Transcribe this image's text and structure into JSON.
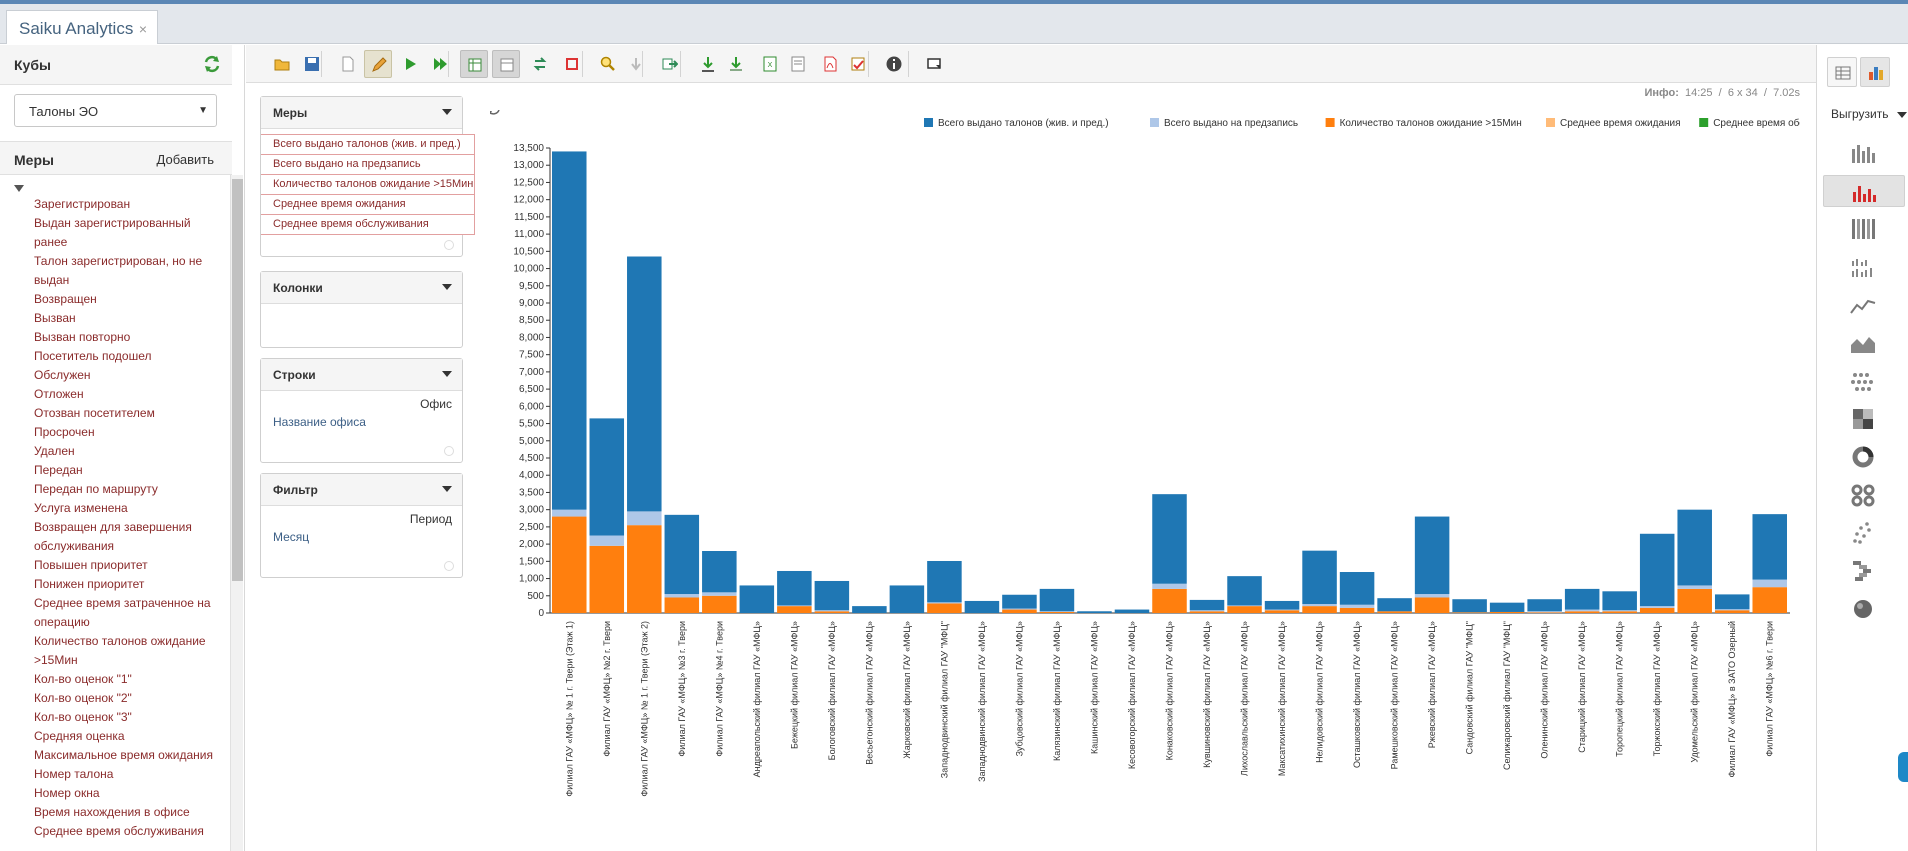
{
  "app": {
    "tab_title": "Saiku Analytics",
    "tab_close": "×"
  },
  "left": {
    "cubes_title": "Кубы",
    "cube_selected": "Талоны ЭО",
    "measures_title": "Меры",
    "add_label": "Добавить",
    "measures": [
      "Зарегистрирован",
      "Выдан зарегистрированный ранее",
      "Талон зарегистрирован, но не выдан",
      "Возвращен",
      "Вызван",
      "Вызван повторно",
      "Посетитель подошел",
      "Обслужен",
      "Отложен",
      "Отозван посетителем",
      "Просрочен",
      "Удален",
      "Передан",
      "Передан по маршруту",
      "Услуга изменена",
      "Возвращен для завершения обслуживания",
      "Повышен приоритет",
      "Понижен приоритет",
      "Среднее время затраченное на операцию",
      "Количество талонов ожидание >15Мин",
      "Кол-во оценок \"1\"",
      "Кол-во оценок \"2\"",
      "Кол-во оценок \"3\"",
      "Средняя оценка",
      "Максимальное время ожидания",
      "Номер талона",
      "Номер окна",
      "Время нахождения в офисе",
      "Среднее время обслуживания"
    ]
  },
  "info": {
    "label": "Инфо:",
    "time": "14:25",
    "size": "6 x 34",
    "duration": "7.02s"
  },
  "panels": {
    "measures": {
      "title": "Меры",
      "items": [
        "Всего выдано талонов (жив. и пред.)",
        "Всего выдано на предзапись",
        "Количество талонов ожидание >15Мин",
        "Среднее время ожидания",
        "Среднее время обслуживания"
      ]
    },
    "columns": {
      "title": "Колонки"
    },
    "rows": {
      "title": "Строки",
      "hierarchy": "Офис",
      "level": "Название офиса"
    },
    "filter": {
      "title": "Фильтр",
      "hierarchy": "Период",
      "level": "Месяц"
    }
  },
  "right": {
    "export_label": "Выгрузить"
  },
  "icons": {
    "toolbar": [
      "open-icon",
      "save-icon",
      "new-query-icon",
      "edit-icon",
      "run-icon",
      "run-auto-icon",
      "pivot-icon",
      "non-empty-icon",
      "swap-axes-icon",
      "hide-parents-icon",
      "zoom-icon",
      "drill-down-icon",
      "drill-across-icon",
      "export-xls-icon",
      "export-csv-icon",
      "export-pdf-icon",
      "export-txt-icon",
      "mdx-icon",
      "query-info-icon",
      "fullscreen-icon"
    ],
    "chart_types": [
      "bar-chart-icon",
      "stacked-bar-chart-icon",
      "stacked-100-icon",
      "multi-bar-icon",
      "line-chart-icon",
      "area-chart-icon",
      "dot-chart-icon",
      "heatmap-icon",
      "donut-chart-icon",
      "multi-donut-icon",
      "scatter-icon",
      "waterfall-icon",
      "sphere-icon"
    ]
  },
  "colors": {
    "series1": "#1f77b4",
    "series2": "#aec7e8",
    "series3": "#ff7f0e",
    "series4": "#ffbb78",
    "series5": "#2ca02c",
    "measure_text": "#8a2b2b"
  },
  "chart_data": {
    "type": "bar",
    "stacked": true,
    "legend_position": "top-right",
    "ylim": [
      0,
      13500
    ],
    "yticks": [
      0,
      500,
      1000,
      1500,
      2000,
      2500,
      3000,
      3500,
      4000,
      4500,
      5000,
      5500,
      6000,
      6500,
      7000,
      7500,
      8000,
      8500,
      9000,
      9500,
      10000,
      10500,
      11000,
      11500,
      12000,
      12500,
      13000,
      13500
    ],
    "categories": [
      "Филиал ГАУ «МФЦ» № 1 г. Твери (Этаж 1)",
      "Филиал ГАУ «МФЦ» №2 г. Твери",
      "Филиал ГАУ «МФЦ» № 1 г. Твери (Этаж 2)",
      "Филиал ГАУ «МФЦ» №3 г. Твери",
      "Филиал ГАУ «МФЦ» №4 г. Твери",
      "Андреапольский филиал ГАУ «МФЦ»",
      "Бежецкий филиал ГАУ «МФЦ»",
      "Бологовский филиал ГАУ «МФЦ»",
      "Весьегонский филиал ГАУ «МФЦ»",
      "Жарковский филиал ГАУ «МФЦ»",
      "Западнодвинский филиал ГАУ \"МФЦ\"",
      "Западнодвинский филиал ГАУ «МФЦ»",
      "Зубцовский филиал ГАУ «МФЦ»",
      "Калязинский филиал ГАУ «МФЦ»",
      "Кашинский филиал ГАУ «МФЦ»",
      "Кесовогорский филиал ГАУ «МФЦ»",
      "Конаковский филиал ГАУ «МФЦ»",
      "Кувшиновский филиал ГАУ «МФЦ»",
      "Лихославльский филиал ГАУ «МФЦ»",
      "Максатихинский филиал ГАУ «МФЦ»",
      "Нелидовский филиал ГАУ «МФЦ»",
      "Осташковский филиал ГАУ «МФЦ»",
      "Рамешковский филиал ГАУ «МФЦ»",
      "Ржевский филиал ГАУ «МФЦ»",
      "Сандовский филиал ГАУ \"МФЦ\"",
      "Селижаровский филиал ГАУ \"МФЦ\"",
      "Оленинский филиал ГАУ «МФЦ»",
      "Старицкий филиал ГАУ «МФЦ»",
      "Торопецкий филиал ГАУ «МФЦ»",
      "Торжокский филиал ГАУ «МФЦ»",
      "Удомельский филиал ГАУ «МФЦ»",
      "Филиал ГАУ «МФЦ» в ЗАТО Озерный",
      "Филиал ГАУ «МФЦ» №6 г. Твери"
    ],
    "series": [
      {
        "name": "Всего выдано талонов (жив. и пред.)",
        "values": [
          10400,
          3400,
          7400,
          2300,
          1200,
          800,
          1000,
          850,
          200,
          800,
          1200,
          350,
          400,
          650,
          50,
          100,
          2600,
          300,
          850,
          250,
          1550,
          950,
          380,
          2250,
          380,
          270,
          350,
          600,
          550,
          2100,
          2200,
          430,
          1900
        ]
      },
      {
        "name": "Всего выдано на предзапись",
        "values": [
          200,
          300,
          400,
          100,
          100,
          0,
          20,
          30,
          0,
          0,
          30,
          0,
          30,
          20,
          0,
          0,
          150,
          30,
          20,
          20,
          60,
          90,
          0,
          100,
          0,
          0,
          30,
          50,
          30,
          50,
          100,
          30,
          220
        ]
      },
      {
        "name": "Количество талонов ожидание >15Мин",
        "values": [
          2800,
          1950,
          2550,
          450,
          500,
          0,
          200,
          50,
          0,
          0,
          280,
          0,
          100,
          30,
          0,
          0,
          700,
          50,
          200,
          80,
          200,
          150,
          50,
          450,
          20,
          30,
          20,
          50,
          50,
          150,
          700,
          80,
          750
        ]
      },
      {
        "name": "Среднее время ожидания",
        "values": [
          0,
          0,
          0,
          0,
          0,
          0,
          0,
          0,
          0,
          0,
          0,
          0,
          0,
          0,
          0,
          0,
          0,
          0,
          0,
          0,
          0,
          0,
          0,
          0,
          0,
          0,
          0,
          0,
          0,
          0,
          0,
          0,
          0
        ]
      },
      {
        "name": "Среднее время обслуживания",
        "values": [
          0,
          0,
          0,
          0,
          0,
          0,
          0,
          0,
          0,
          0,
          0,
          0,
          0,
          0,
          0,
          0,
          0,
          0,
          0,
          0,
          0,
          0,
          0,
          0,
          0,
          0,
          0,
          0,
          0,
          0,
          0,
          0,
          0
        ]
      }
    ]
  }
}
